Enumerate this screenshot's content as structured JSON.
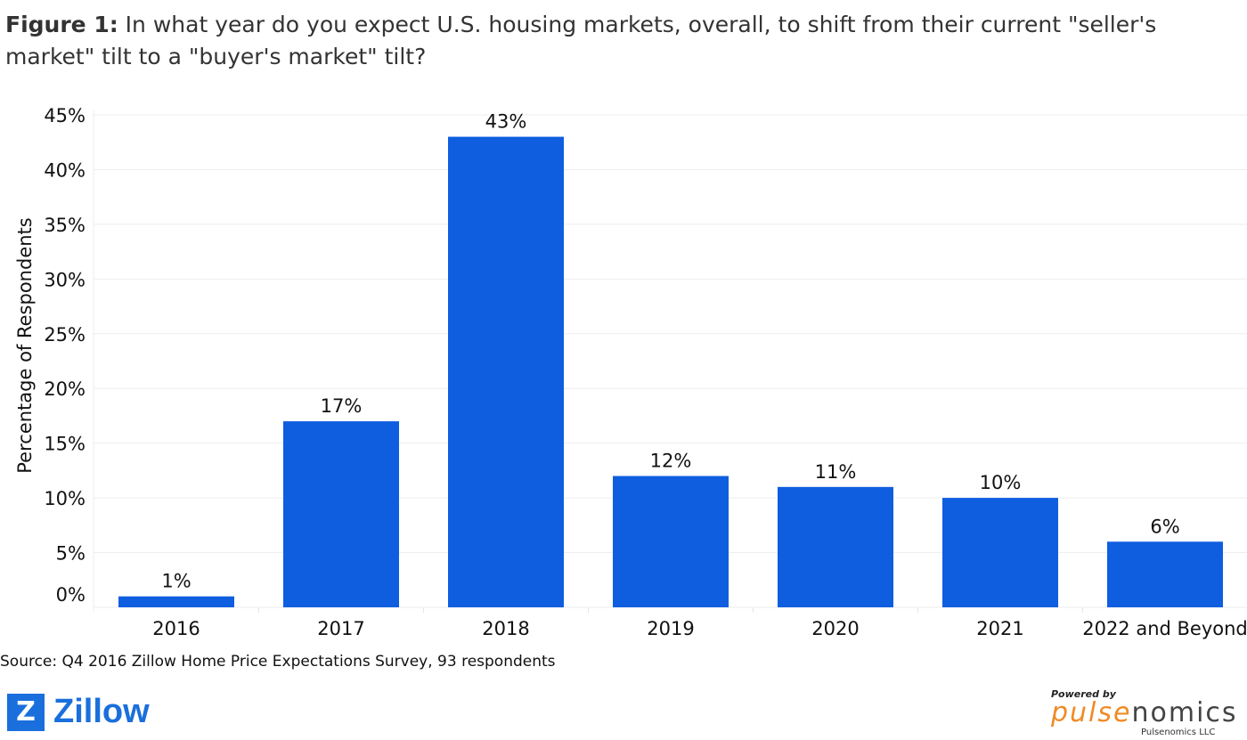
{
  "title": {
    "prefix": "Figure 1:",
    "text": " In what year do you expect U.S. housing markets, overall, to shift from their current \"seller's market\" tilt to a \"buyer's market\" tilt?"
  },
  "source": "Source: Q4 2016 Zillow Home Price Expectations Survey, 93 respondents",
  "logos": {
    "zillow": "Zillow",
    "powered_by": "Powered by",
    "pulse_a": "pulse",
    "pulse_b": "nomics",
    "pulse_llc": "Pulsenomics LLC"
  },
  "chart_data": {
    "type": "bar",
    "title": "In what year do you expect U.S. housing markets, overall, to shift from their current \"seller's market\" tilt to a \"buyer's market\" tilt?",
    "xlabel": "",
    "ylabel": "Percentage of Respondents",
    "categories": [
      "2016",
      "2017",
      "2018",
      "2019",
      "2020",
      "2021",
      "2022 and Beyond"
    ],
    "values": [
      1,
      17,
      43,
      12,
      11,
      10,
      6
    ],
    "data_labels": [
      "1%",
      "17%",
      "43%",
      "12%",
      "11%",
      "10%",
      "6%"
    ],
    "ylim": [
      0,
      45
    ],
    "yticks": [
      "0%",
      "5%",
      "10%",
      "15%",
      "20%",
      "25%",
      "30%",
      "35%",
      "40%",
      "45%"
    ],
    "grid": true,
    "bar_color": "#0f5ee0"
  }
}
